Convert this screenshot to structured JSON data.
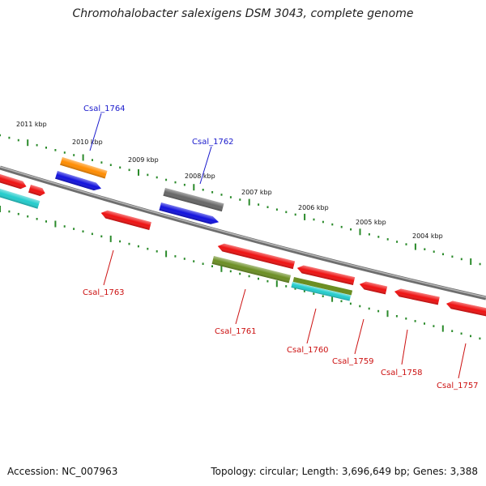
{
  "title": "Chromohalobacter salexigens DSM 3043, complete genome",
  "footer": {
    "accession": "Accession: NC_007963",
    "summary": "Topology: circular; Length: 3,696,649 bp; Genes: 3,388"
  },
  "colors": {
    "backbone": "#8a8a8a",
    "ticks": "#2a8a2a",
    "forward_label": "#1a1acc",
    "reverse_label": "#cc1111",
    "red_gene": "#ee1111",
    "blue_gene": "#1111dd",
    "orange_gene": "#ff8c00",
    "gray_gene": "#666666",
    "olive_gene": "#6b8e23",
    "cyan_gene": "#22cccc"
  },
  "kbp_labels": [
    {
      "text": "2011 kbp"
    },
    {
      "text": "2010 kbp"
    },
    {
      "text": "2009 kbp"
    },
    {
      "text": "2008 kbp"
    },
    {
      "text": "2007 kbp"
    },
    {
      "text": "2006 kbp"
    },
    {
      "text": "2005 kbp"
    },
    {
      "text": "2004 kbp"
    }
  ],
  "gene_labels": [
    {
      "text": "Csal_1764",
      "strand": "forward"
    },
    {
      "text": "Csal_1762",
      "strand": "forward"
    },
    {
      "text": "Csal_1763",
      "strand": "reverse"
    },
    {
      "text": "Csal_1761",
      "strand": "reverse"
    },
    {
      "text": "Csal_1760",
      "strand": "reverse"
    },
    {
      "text": "Csal_1759",
      "strand": "reverse"
    },
    {
      "text": "Csal_1758",
      "strand": "reverse"
    },
    {
      "text": "Csal_1757",
      "strand": "reverse"
    }
  ]
}
